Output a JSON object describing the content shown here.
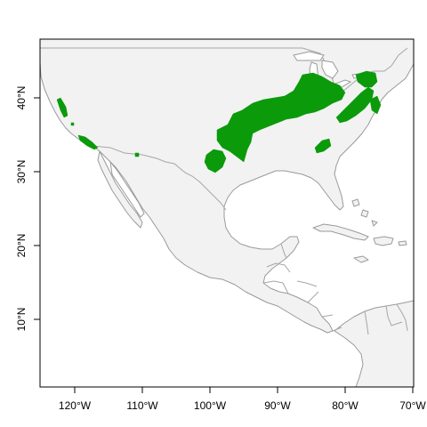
{
  "map": {
    "x_axis": {
      "ticks": [
        {
          "lon": -120,
          "label": "120°W"
        },
        {
          "lon": -110,
          "label": "110°W"
        },
        {
          "lon": -100,
          "label": "100°W"
        },
        {
          "lon": -90,
          "label": "90°W"
        },
        {
          "lon": -80,
          "label": "80°W"
        },
        {
          "lon": -70,
          "label": "70°W"
        }
      ]
    },
    "y_axis": {
      "ticks": [
        {
          "lat": 10,
          "label": "10°N"
        },
        {
          "lat": 20,
          "label": "20°N"
        },
        {
          "lat": 30,
          "label": "30°N"
        },
        {
          "lat": 40,
          "label": "40°N"
        }
      ]
    },
    "colors": {
      "land": "#f2f2f2",
      "border": "#9a9a9a",
      "water": "#ffffff",
      "distribution": "#0a9a0a"
    }
  }
}
